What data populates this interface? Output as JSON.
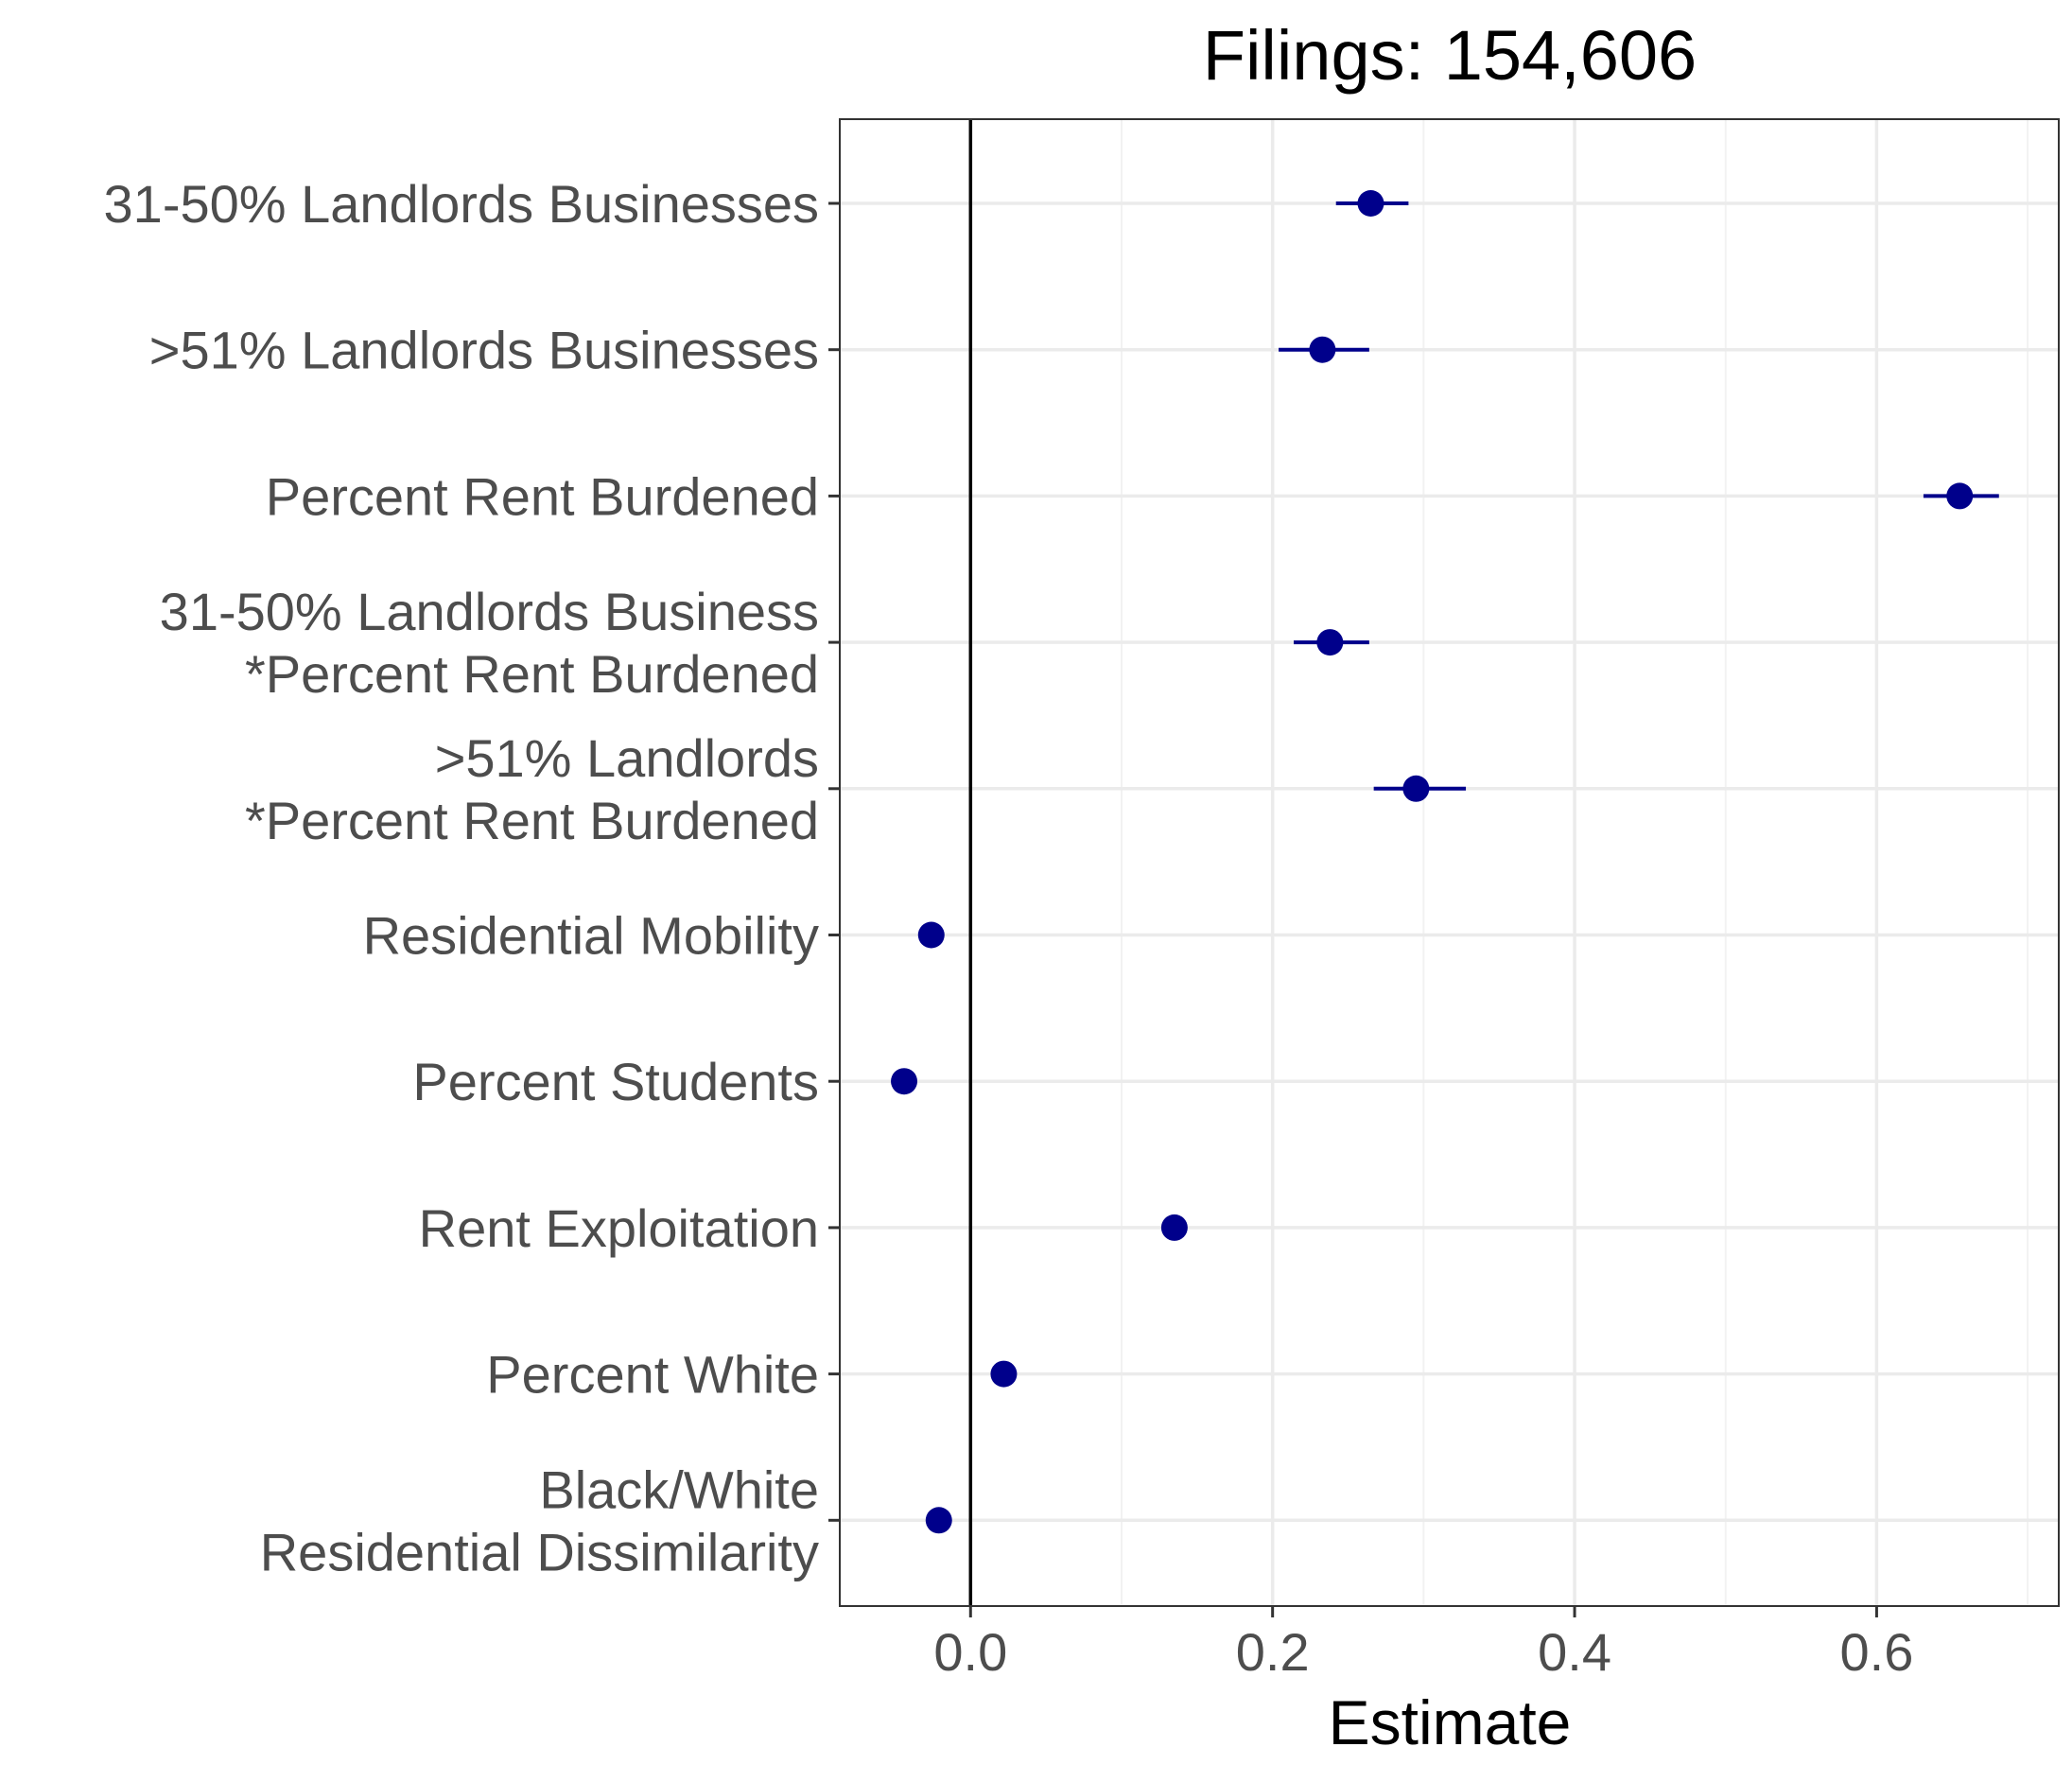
{
  "chart_data": {
    "type": "scatter",
    "title": "Filings: 154,606",
    "xlabel": "Estimate",
    "ylabel": "",
    "xlim": [
      -0.0866,
      0.7206
    ],
    "xticks": [
      0.0,
      0.2,
      0.4,
      0.6
    ],
    "xtick_labels": [
      "0.0",
      "0.2",
      "0.4",
      "0.6"
    ],
    "grid": true,
    "reference_line_x": 0,
    "point_color": "#00008b",
    "categories": [
      [
        "31-50% Landlords Businesses"
      ],
      [
        ">51% Landlords Businesses"
      ],
      [
        "Percent Rent Burdened"
      ],
      [
        "31-50% Landlords Business",
        "*Percent Rent Burdened"
      ],
      [
        ">51% Landlords",
        "*Percent Rent Burdened"
      ],
      [
        "Residential Mobility"
      ],
      [
        "Percent Students"
      ],
      [
        "Rent Exploitation"
      ],
      [
        "Percent White"
      ],
      [
        "Black/White",
        "Residential Dissimilarity"
      ]
    ],
    "estimates": [
      0.265,
      0.233,
      0.655,
      0.238,
      0.295,
      -0.026,
      -0.044,
      0.135,
      0.022,
      -0.021
    ],
    "ci_low": [
      0.242,
      0.204,
      0.631,
      0.214,
      0.267,
      null,
      null,
      null,
      null,
      null
    ],
    "ci_high": [
      0.29,
      0.264,
      0.681,
      0.264,
      0.328,
      null,
      null,
      null,
      null,
      null
    ]
  }
}
